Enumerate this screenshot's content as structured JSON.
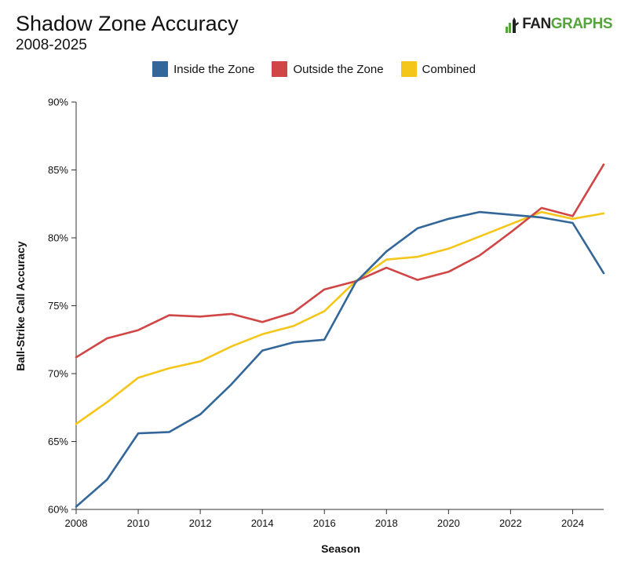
{
  "header": {
    "title": "Shadow Zone Accuracy",
    "subtitle": "2008-2025",
    "logo_text_fan": "FAN",
    "logo_text_graphs": "GRAPHS"
  },
  "colors": {
    "inside": "#336699",
    "outside": "#d04545",
    "combined": "#f5c61a",
    "axis": "#333333"
  },
  "chart_data": {
    "type": "line",
    "title": "Shadow Zone Accuracy",
    "subtitle": "2008-2025",
    "xlabel": "Season",
    "ylabel": "Ball-Strike Call Accuracy",
    "xlim": [
      2008,
      2025
    ],
    "ylim": [
      60,
      90
    ],
    "xticks": [
      2008,
      2010,
      2012,
      2014,
      2016,
      2018,
      2020,
      2022,
      2024
    ],
    "xtick_labels": [
      "2008",
      "2010",
      "2012",
      "2014",
      "2016",
      "2018",
      "2020",
      "2022",
      "2024"
    ],
    "yticks": [
      60,
      65,
      70,
      75,
      80,
      85,
      90
    ],
    "ytick_labels": [
      "60%",
      "65%",
      "70%",
      "75%",
      "80%",
      "85%",
      "90%"
    ],
    "grid": false,
    "legend_position": "top-center",
    "x": [
      2008,
      2009,
      2010,
      2011,
      2012,
      2013,
      2014,
      2015,
      2016,
      2017,
      2018,
      2019,
      2020,
      2021,
      2022,
      2023,
      2024,
      2025
    ],
    "series": [
      {
        "name": "Inside the Zone",
        "color": "#336699",
        "values": [
          60.2,
          62.2,
          65.6,
          65.7,
          67.0,
          69.2,
          71.7,
          72.3,
          72.5,
          76.7,
          79.0,
          80.7,
          81.4,
          81.9,
          81.7,
          81.5,
          81.1,
          77.4
        ]
      },
      {
        "name": "Outside the Zone",
        "color": "#d04545",
        "values": [
          71.2,
          72.6,
          73.2,
          74.3,
          74.2,
          74.4,
          73.8,
          74.5,
          76.2,
          76.8,
          77.8,
          76.9,
          77.5,
          78.7,
          80.4,
          82.2,
          81.6,
          85.4
        ]
      },
      {
        "name": "Combined",
        "color": "#f5c61a",
        "values": [
          66.3,
          67.9,
          69.7,
          70.4,
          70.9,
          72.0,
          72.9,
          73.5,
          74.6,
          76.8,
          78.4,
          78.6,
          79.2,
          80.1,
          81.0,
          81.9,
          81.4,
          81.8
        ]
      }
    ]
  }
}
